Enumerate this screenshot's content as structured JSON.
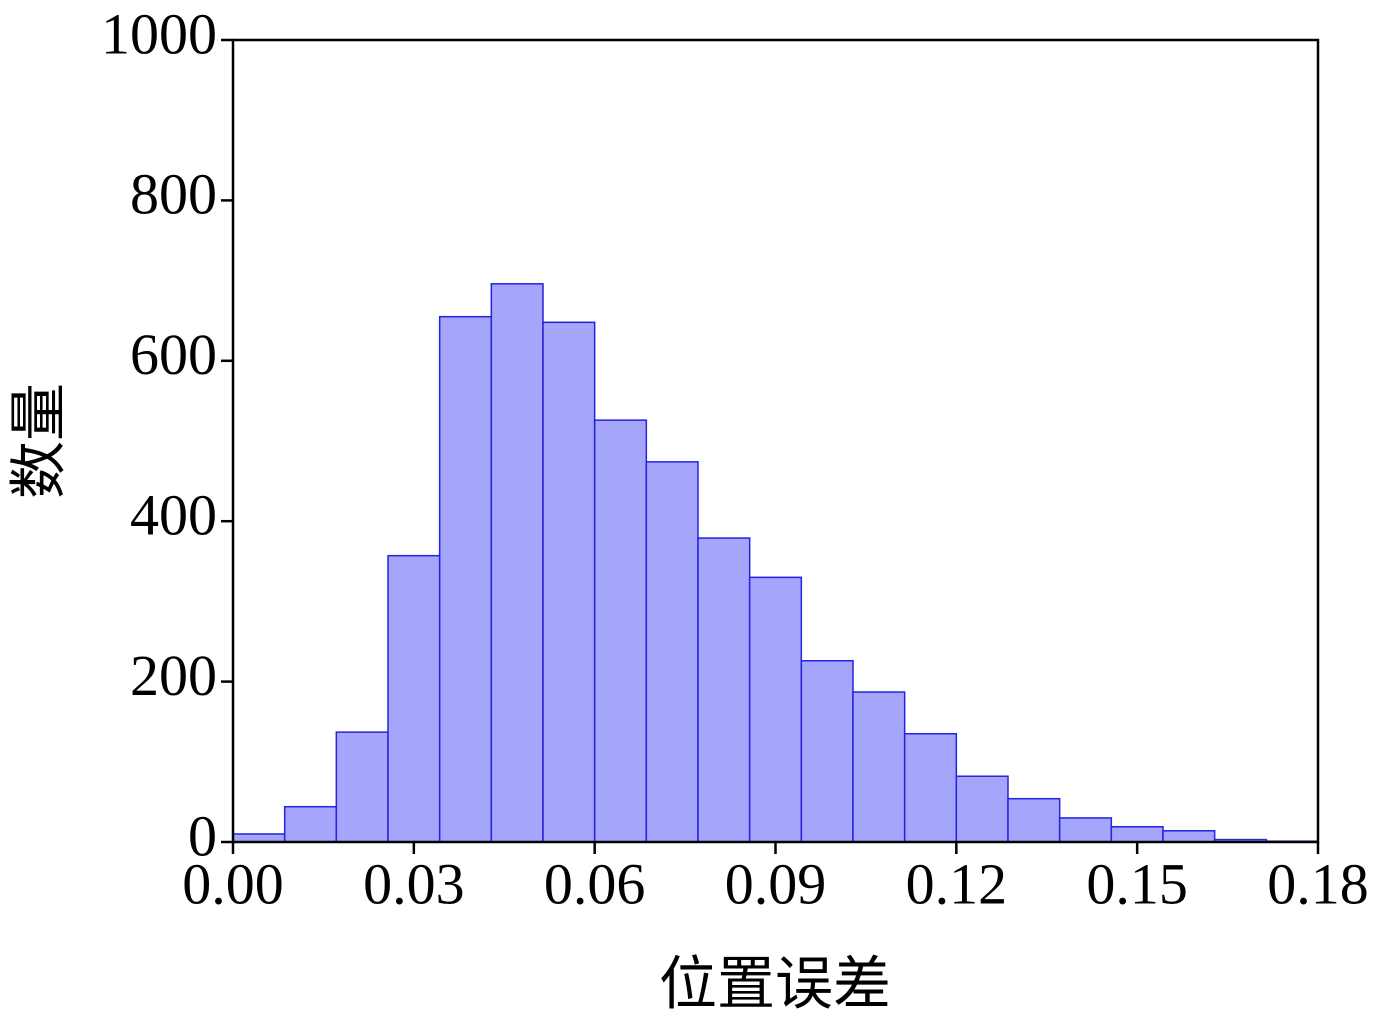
{
  "chart_data": {
    "type": "histogram",
    "xlabel": "位置误差",
    "ylabel": "数量",
    "bins": [
      0,
      0.008571,
      0.017143,
      0.025714,
      0.034286,
      0.042857,
      0.051429,
      0.06,
      0.068571,
      0.077143,
      0.085714,
      0.094286,
      0.102857,
      0.111429,
      0.12,
      0.128571,
      0.137143,
      0.145714,
      0.154286,
      0.162857,
      0.171429,
      0.18
    ],
    "values": [
      10,
      44,
      137,
      357,
      655,
      696,
      648,
      526,
      474,
      379,
      330,
      226,
      187,
      135,
      82,
      54,
      30,
      19,
      14,
      3,
      1
    ],
    "color": "#a5a5fc",
    "edgecolor": "#2323e0",
    "xlim": [
      0,
      0.18
    ],
    "xticks": [
      {
        "value": 0,
        "label": "0.00"
      },
      0.03,
      0.06,
      0.09,
      0.12,
      0.15,
      0.18
    ],
    "ylim": [
      0,
      1000
    ],
    "yticks": [
      0,
      200,
      400,
      600,
      800,
      1000
    ],
    "grid": false
  }
}
